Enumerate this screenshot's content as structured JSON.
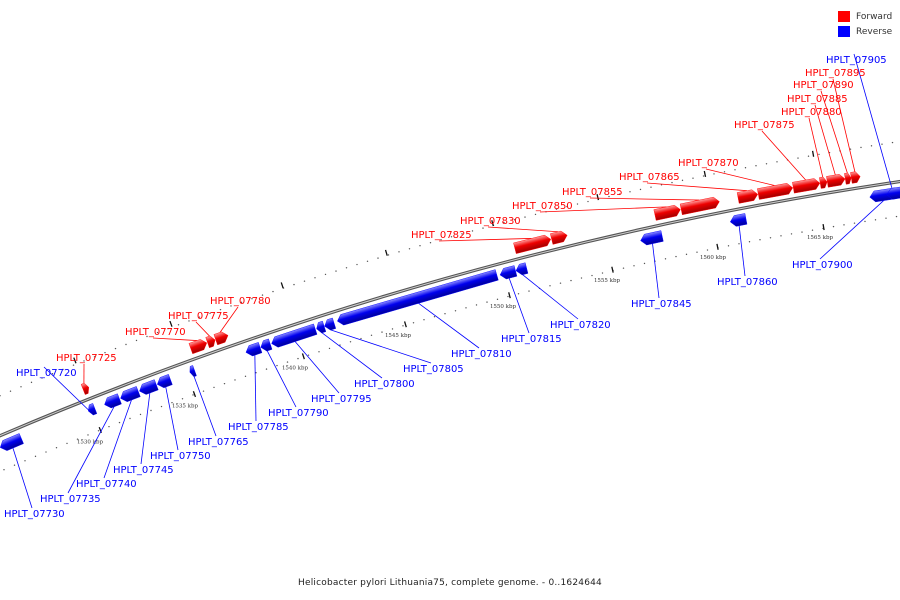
{
  "legend": {
    "forward_label": "Forward",
    "reverse_label": "Reverse",
    "forward_color": "#ff0000",
    "reverse_color": "#0000ff"
  },
  "caption": "Helicobacter pylori Lithuania75, complete genome. - 0..1624644",
  "ticks": [
    "1530 kbp",
    "1535 kbp",
    "1540 kbp",
    "1545 kbp",
    "1550 kbp",
    "1555 kbp",
    "1560 kbp",
    "1565 kbp"
  ],
  "genes": [
    {
      "name": "HPLT_07720",
      "strand": "reverse"
    },
    {
      "name": "HPLT_07725",
      "strand": "forward"
    },
    {
      "name": "HPLT_07730",
      "strand": "reverse"
    },
    {
      "name": "HPLT_07735",
      "strand": "reverse"
    },
    {
      "name": "HPLT_07740",
      "strand": "reverse"
    },
    {
      "name": "HPLT_07745",
      "strand": "reverse"
    },
    {
      "name": "HPLT_07750",
      "strand": "reverse"
    },
    {
      "name": "HPLT_07765",
      "strand": "reverse"
    },
    {
      "name": "HPLT_07770",
      "strand": "forward"
    },
    {
      "name": "HPLT_07775",
      "strand": "forward"
    },
    {
      "name": "HPLT_07780",
      "strand": "forward"
    },
    {
      "name": "HPLT_07785",
      "strand": "reverse"
    },
    {
      "name": "HPLT_07790",
      "strand": "reverse"
    },
    {
      "name": "HPLT_07795",
      "strand": "reverse"
    },
    {
      "name": "HPLT_07800",
      "strand": "reverse"
    },
    {
      "name": "HPLT_07805",
      "strand": "reverse"
    },
    {
      "name": "HPLT_07810",
      "strand": "reverse"
    },
    {
      "name": "HPLT_07815",
      "strand": "reverse"
    },
    {
      "name": "HPLT_07820",
      "strand": "reverse"
    },
    {
      "name": "HPLT_07825",
      "strand": "forward"
    },
    {
      "name": "HPLT_07830",
      "strand": "forward"
    },
    {
      "name": "HPLT_07845",
      "strand": "reverse"
    },
    {
      "name": "HPLT_07850",
      "strand": "forward"
    },
    {
      "name": "HPLT_07855",
      "strand": "forward"
    },
    {
      "name": "HPLT_07860",
      "strand": "reverse"
    },
    {
      "name": "HPLT_07865",
      "strand": "forward"
    },
    {
      "name": "HPLT_07870",
      "strand": "forward"
    },
    {
      "name": "HPLT_07875",
      "strand": "forward"
    },
    {
      "name": "HPLT_07880",
      "strand": "forward"
    },
    {
      "name": "HPLT_07885",
      "strand": "forward"
    },
    {
      "name": "HPLT_07890",
      "strand": "forward"
    },
    {
      "name": "HPLT_07895",
      "strand": "forward"
    },
    {
      "name": "HPLT_07900",
      "strand": "reverse"
    },
    {
      "name": "HPLT_07905",
      "strand": "reverse"
    }
  ]
}
